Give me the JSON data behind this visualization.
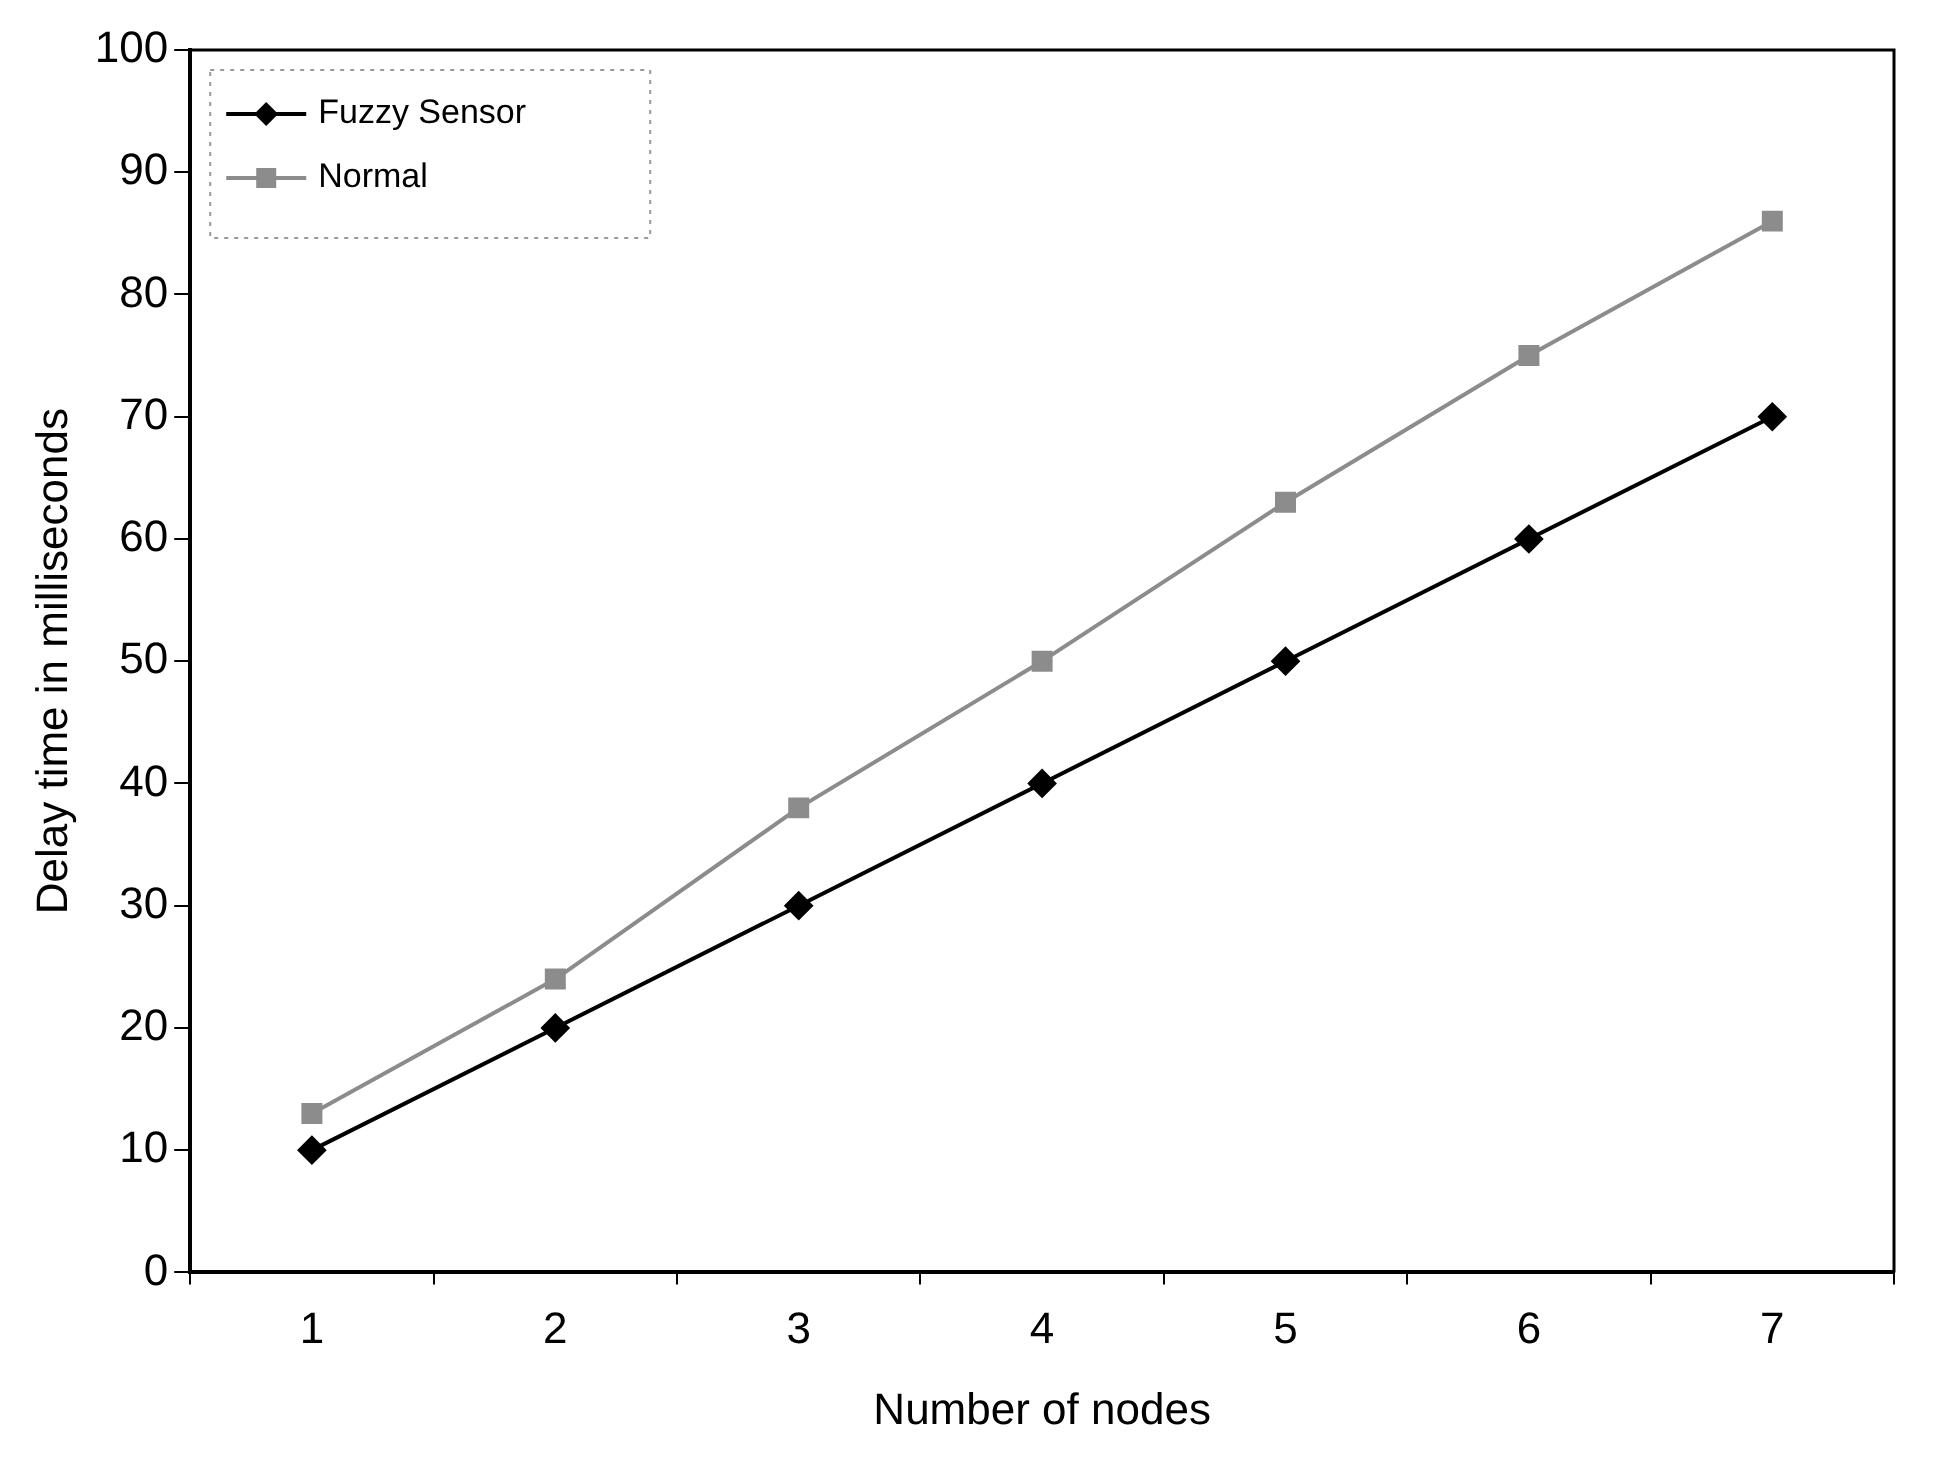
{
  "chart_data": {
    "type": "line",
    "xlabel": "Number of nodes",
    "ylabel": "Delay time in milliseconds",
    "categories": [
      "1",
      "2",
      "3",
      "4",
      "5",
      "6",
      "7"
    ],
    "series": [
      {
        "name": "Fuzzy Sensor",
        "color": "#000000",
        "marker": "diamond",
        "values": [
          10,
          20,
          30,
          40,
          50,
          60,
          70
        ]
      },
      {
        "name": "Normal",
        "color": "#8c8c8c",
        "marker": "square",
        "values": [
          13,
          24,
          38,
          50,
          63,
          75,
          86
        ]
      }
    ],
    "ylim": [
      0,
      100
    ],
    "yticks": [
      0,
      10,
      20,
      30,
      40,
      50,
      60,
      70,
      80,
      90,
      100
    ],
    "grid": false,
    "legend": "top left",
    "line_style": "solid"
  }
}
